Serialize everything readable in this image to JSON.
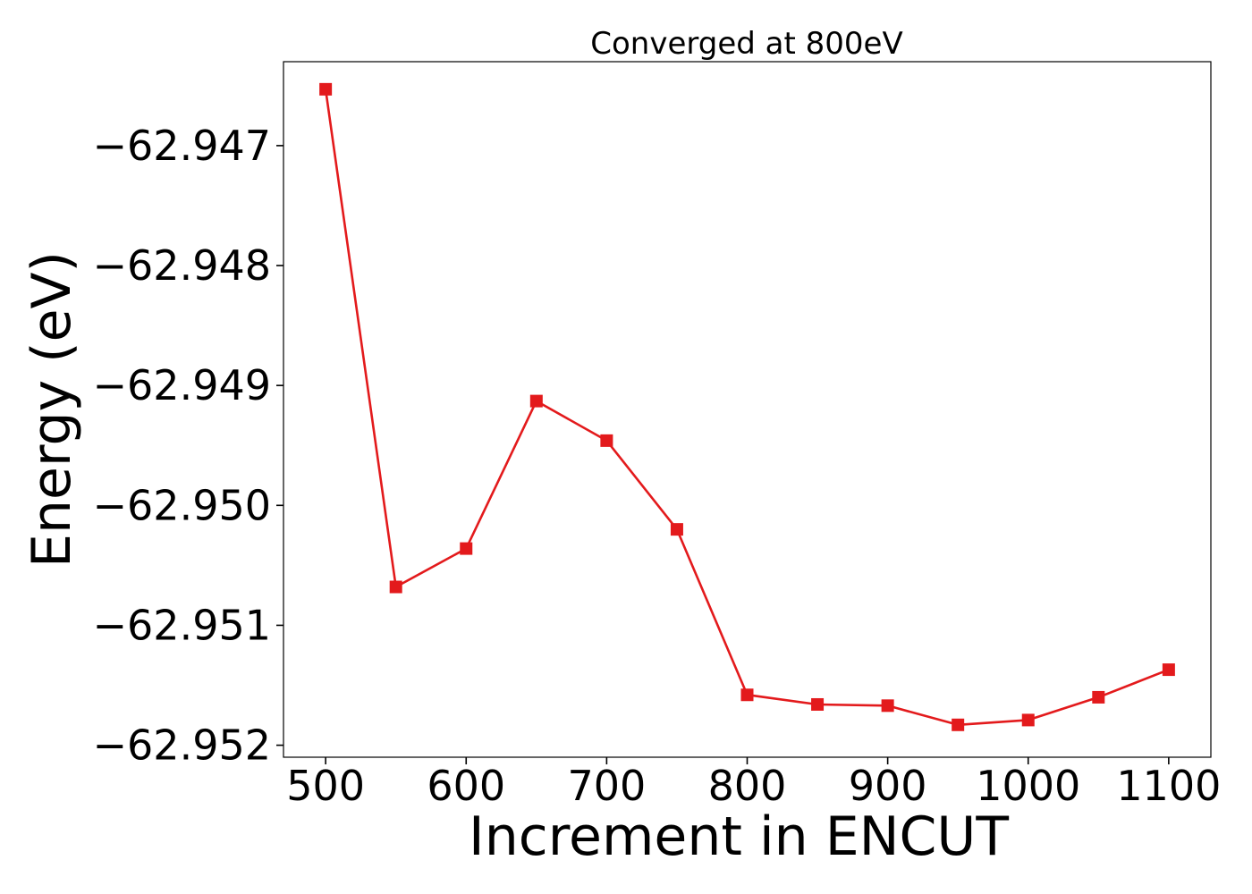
{
  "chart_data": {
    "type": "line",
    "title": "Converged at 800eV",
    "xlabel": "Increment in ENCUT",
    "ylabel": "Energy (eV)",
    "x": [
      500,
      550,
      600,
      650,
      700,
      750,
      800,
      850,
      900,
      950,
      1000,
      1050,
      1100
    ],
    "series": [
      {
        "values": [
          -62.94653,
          -62.95068,
          -62.95036,
          -62.94913,
          -62.94946,
          -62.9502,
          -62.95158,
          -62.95166,
          -62.95167,
          -62.95183,
          -62.95179,
          -62.9516,
          -62.95137
        ]
      }
    ],
    "xlim": [
      470,
      1130
    ],
    "ylim": [
      -62.9521,
      -62.9463
    ],
    "xticks": [
      500,
      600,
      700,
      800,
      900,
      1000,
      1100
    ],
    "xtick_labels": [
      "500",
      "600",
      "700",
      "800",
      "900",
      "1000",
      "1100"
    ],
    "yticks": [
      -62.947,
      -62.948,
      -62.949,
      -62.95,
      -62.951,
      -62.952
    ],
    "ytick_labels": [
      "−62.947",
      "−62.948",
      "−62.949",
      "−62.950",
      "−62.951",
      "−62.952"
    ],
    "line_color": "#e31a1c",
    "marker": "square",
    "grid": false,
    "legend": "none"
  }
}
